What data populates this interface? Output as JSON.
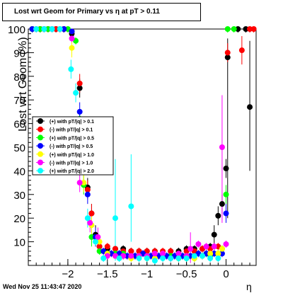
{
  "title": "Lost wrt Geom for Primary vs   η at pT > 0.11",
  "footer": "Wed Nov 25 11:43:47 2020",
  "chart_data": {
    "type": "scatter",
    "xlabel": "η",
    "ylabel": "Lost wrt Geom (%)",
    "xlim": [
      -2.5,
      0.38
    ],
    "ylim": [
      0,
      100
    ],
    "xticks": [
      -2,
      -1.5,
      -1,
      -0.5,
      0
    ],
    "xtick_labels": [
      "−2",
      "−1.5",
      "−1",
      "−0.5",
      "0"
    ],
    "yticks": [
      10,
      20,
      30,
      40,
      50,
      60,
      70,
      80,
      90,
      100
    ],
    "ytick_labels": [
      "10",
      "20",
      "30",
      "40",
      "50",
      "60",
      "70",
      "80",
      "90",
      "100"
    ],
    "legend_position": "middle-left",
    "series": [
      {
        "name": "(+) with pT/|q| > 0.1",
        "color": "#000000",
        "points": [
          [
            -2.45,
            100
          ],
          [
            -2.35,
            100
          ],
          [
            -2.25,
            100
          ],
          [
            -2.15,
            100
          ],
          [
            -2.05,
            100
          ],
          [
            -1.95,
            98
          ],
          [
            -1.85,
            75
          ],
          [
            -1.75,
            33
          ],
          [
            -1.7,
            22
          ],
          [
            -1.65,
            13
          ],
          [
            -1.6,
            8
          ],
          [
            -1.5,
            7
          ],
          [
            -1.4,
            7
          ],
          [
            -1.3,
            7
          ],
          [
            -1.2,
            6
          ],
          [
            -1.1,
            6
          ],
          [
            -1.0,
            6
          ],
          [
            -0.9,
            6
          ],
          [
            -0.8,
            5
          ],
          [
            -0.7,
            6
          ],
          [
            -0.6,
            6
          ],
          [
            -0.5,
            7
          ],
          [
            -0.4,
            7
          ],
          [
            -0.3,
            7
          ],
          [
            -0.2,
            8
          ],
          [
            -0.15,
            13
          ],
          [
            -0.1,
            21
          ],
          [
            -0.05,
            26
          ],
          [
            0.0,
            41
          ],
          [
            0.02,
            88
          ],
          [
            0.15,
            100
          ],
          [
            0.25,
            100
          ],
          [
            0.3,
            67
          ]
        ]
      },
      {
        "name": "(-) with pT/|q| > 0.1",
        "color": "#ff0000",
        "points": [
          [
            -2.45,
            100
          ],
          [
            -2.35,
            100
          ],
          [
            -2.25,
            100
          ],
          [
            -2.15,
            100
          ],
          [
            -2.05,
            100
          ],
          [
            -1.95,
            99
          ],
          [
            -1.85,
            77
          ],
          [
            -1.75,
            32
          ],
          [
            -1.7,
            22
          ],
          [
            -1.65,
            12
          ],
          [
            -1.6,
            8
          ],
          [
            -1.5,
            8
          ],
          [
            -1.4,
            7
          ],
          [
            -1.3,
            6
          ],
          [
            -1.2,
            6
          ],
          [
            -1.1,
            6
          ],
          [
            -1.0,
            6
          ],
          [
            -0.9,
            6
          ],
          [
            -0.8,
            6
          ],
          [
            -0.7,
            6
          ],
          [
            -0.6,
            5
          ],
          [
            -0.5,
            6
          ],
          [
            -0.4,
            6
          ],
          [
            -0.3,
            7
          ],
          [
            -0.2,
            7
          ],
          [
            -0.1,
            8
          ],
          [
            0.02,
            90
          ],
          [
            0.2,
            91
          ],
          [
            0.3,
            100
          ],
          [
            0.35,
            100
          ]
        ]
      },
      {
        "name": "(+) with pT/|q| > 0.5",
        "color": "#00ff00",
        "points": [
          [
            -2.45,
            100
          ],
          [
            -2.35,
            100
          ],
          [
            -2.25,
            100
          ],
          [
            -2.1,
            100
          ],
          [
            -2.0,
            100
          ],
          [
            -1.9,
            95
          ],
          [
            -1.85,
            62
          ],
          [
            -1.8,
            34
          ],
          [
            -1.7,
            12
          ],
          [
            -1.6,
            6
          ],
          [
            -1.5,
            5
          ],
          [
            -1.4,
            5
          ],
          [
            -1.3,
            5
          ],
          [
            -1.2,
            4
          ],
          [
            -1.1,
            4
          ],
          [
            -1.0,
            4
          ],
          [
            -0.9,
            4
          ],
          [
            -0.8,
            4
          ],
          [
            -0.7,
            4
          ],
          [
            -0.6,
            3
          ],
          [
            -0.5,
            3
          ],
          [
            -0.4,
            3
          ],
          [
            -0.3,
            4
          ],
          [
            -0.2,
            4
          ],
          [
            -0.1,
            5
          ],
          [
            -0.05,
            7
          ],
          [
            0.0,
            30
          ],
          [
            0.02,
            100
          ],
          [
            0.1,
            100
          ]
        ]
      },
      {
        "name": "(-) with pT/|q| > 0.5",
        "color": "#0000ff",
        "points": [
          [
            -2.45,
            100
          ],
          [
            -2.3,
            100
          ],
          [
            -2.2,
            100
          ],
          [
            -2.05,
            100
          ],
          [
            -1.95,
            99
          ],
          [
            -1.85,
            65
          ],
          [
            -1.75,
            30
          ],
          [
            -1.65,
            12
          ],
          [
            -1.55,
            6
          ],
          [
            -1.45,
            5
          ],
          [
            -1.35,
            5
          ],
          [
            -1.25,
            4
          ],
          [
            -1.15,
            4
          ],
          [
            -1.05,
            5
          ],
          [
            -0.95,
            4
          ],
          [
            -0.85,
            4
          ],
          [
            -0.75,
            4
          ],
          [
            -0.65,
            4
          ],
          [
            -0.55,
            4
          ],
          [
            -0.45,
            4
          ],
          [
            -0.35,
            5
          ],
          [
            -0.25,
            5
          ],
          [
            -0.15,
            5
          ],
          [
            -0.05,
            5
          ],
          [
            0.0,
            22
          ]
        ]
      },
      {
        "name": "(+) with pT/|q| > 1.0",
        "color": "#ffff00",
        "points": [
          [
            -2.4,
            100
          ],
          [
            -2.3,
            100
          ],
          [
            -2.2,
            100
          ],
          [
            -2.1,
            100
          ],
          [
            -1.95,
            92
          ],
          [
            -1.8,
            35
          ],
          [
            -1.7,
            17
          ],
          [
            -1.6,
            10
          ],
          [
            -1.5,
            5
          ],
          [
            -1.4,
            4
          ],
          [
            -1.3,
            4
          ],
          [
            -1.2,
            3
          ],
          [
            -1.1,
            4
          ],
          [
            -1.0,
            3
          ],
          [
            -0.9,
            3
          ],
          [
            -0.8,
            5
          ],
          [
            -0.7,
            3
          ],
          [
            -0.6,
            3
          ],
          [
            -0.5,
            4
          ],
          [
            -0.4,
            3
          ],
          [
            -0.3,
            4
          ],
          [
            -0.2,
            5
          ],
          [
            -0.1,
            5
          ],
          [
            -0.05,
            7
          ]
        ]
      },
      {
        "name": "(-) with pT/|q| > 1.0",
        "color": "#ff00ff",
        "points": [
          [
            -2.4,
            100
          ],
          [
            -2.3,
            100
          ],
          [
            -2.2,
            100
          ],
          [
            -2.1,
            100
          ],
          [
            -1.95,
            96
          ],
          [
            -1.85,
            35
          ],
          [
            -1.72,
            18
          ],
          [
            -1.62,
            12
          ],
          [
            -1.5,
            4
          ],
          [
            -1.4,
            4
          ],
          [
            -1.3,
            4
          ],
          [
            -1.2,
            4
          ],
          [
            -1.1,
            4
          ],
          [
            -1.0,
            4
          ],
          [
            -0.9,
            5
          ],
          [
            -0.8,
            5
          ],
          [
            -0.7,
            3
          ],
          [
            -0.6,
            5
          ],
          [
            -0.5,
            4
          ],
          [
            -0.45,
            7
          ],
          [
            -0.35,
            9
          ],
          [
            -0.25,
            8
          ],
          [
            -0.15,
            8
          ],
          [
            -0.05,
            50
          ],
          [
            0.0,
            9
          ]
        ]
      },
      {
        "name": "(+) with pT/|q| > 2.0",
        "color": "#00ffff",
        "points": [
          [
            -2.4,
            100
          ],
          [
            -2.3,
            100
          ],
          [
            -2.2,
            100
          ],
          [
            -2.1,
            100
          ],
          [
            -1.96,
            83
          ],
          [
            -1.9,
            73
          ],
          [
            -1.75,
            20
          ],
          [
            -1.65,
            10
          ],
          [
            -1.55,
            3
          ],
          [
            -1.4,
            20
          ],
          [
            -1.35,
            3
          ],
          [
            -1.2,
            25
          ],
          [
            -1.1,
            3
          ],
          [
            -1.0,
            3
          ],
          [
            -0.9,
            2
          ],
          [
            -0.8,
            3
          ],
          [
            -0.7,
            3
          ],
          [
            -0.6,
            3
          ],
          [
            -0.5,
            3
          ],
          [
            -0.4,
            4
          ],
          [
            -0.3,
            4
          ],
          [
            -0.2,
            3
          ],
          [
            -0.1,
            3
          ]
        ]
      }
    ]
  }
}
